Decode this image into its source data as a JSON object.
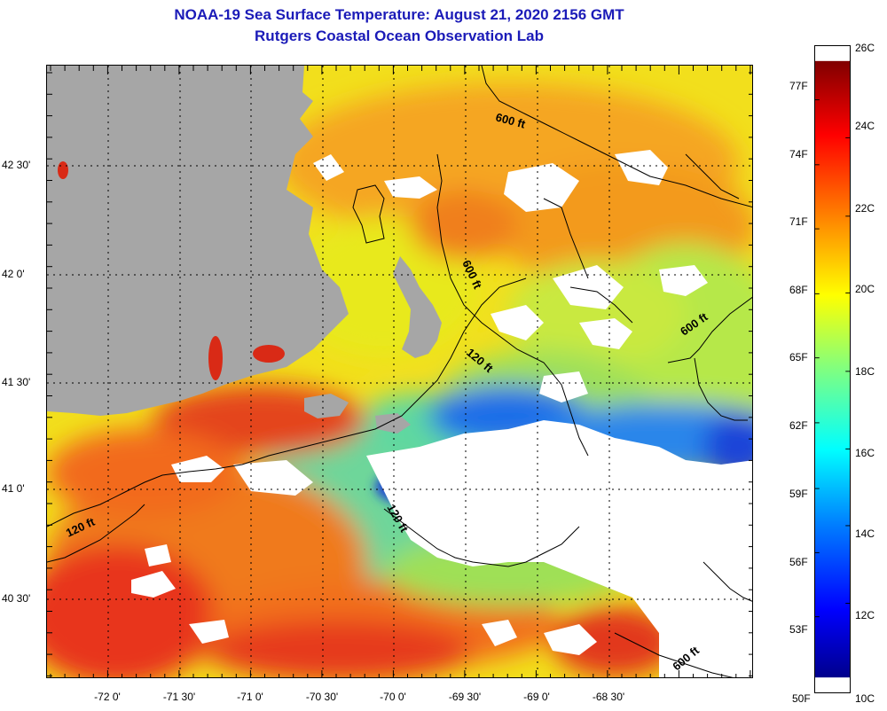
{
  "header": {
    "title": "NOAA-19 Sea Surface Temperature:  August 21, 2020 2156 GMT",
    "subtitle": "Rutgers Coastal Ocean Observation Lab"
  },
  "map": {
    "longitude_labels": [
      {
        "text": "-72 0'",
        "lon": -72.0
      },
      {
        "text": "-71 30'",
        "lon": -71.5
      },
      {
        "text": "-71 0'",
        "lon": -71.0
      },
      {
        "text": "-70 30'",
        "lon": -70.5
      },
      {
        "text": "-70 0'",
        "lon": -70.0
      },
      {
        "text": "-69 30'",
        "lon": -69.5
      },
      {
        "text": "-69 0'",
        "lon": -69.0
      },
      {
        "text": "-68 30'",
        "lon": -68.5
      }
    ],
    "latitude_labels": [
      {
        "text": "42 30'",
        "lat": 42.5
      },
      {
        "text": "42 0'",
        "lat": 42.0
      },
      {
        "text": "41 30'",
        "lat": 41.5
      },
      {
        "text": "41 0'",
        "lat": 41.0
      },
      {
        "text": "40 30'",
        "lat": 40.5
      }
    ],
    "contour_labels": [
      "600 ft",
      "600 ft",
      "600 ft",
      "120 ft",
      "120 ft",
      "120 ft",
      "600 ft"
    ],
    "colors": {
      "land": "#a6a6a6",
      "cloud": "#ffffff",
      "contour": "#000000"
    }
  },
  "colorbar": {
    "fahrenheit_labels": [
      "77F",
      "74F",
      "71F",
      "68F",
      "65F",
      "62F",
      "59F",
      "56F",
      "53F"
    ],
    "fahrenheit_bottom": "50F",
    "celsius_top": "26C",
    "celsius_labels": [
      "24C",
      "22C",
      "20C",
      "18C",
      "16C",
      "14C",
      "12C"
    ],
    "celsius_bottom": "10C",
    "range_c": [
      10,
      26
    ]
  }
}
